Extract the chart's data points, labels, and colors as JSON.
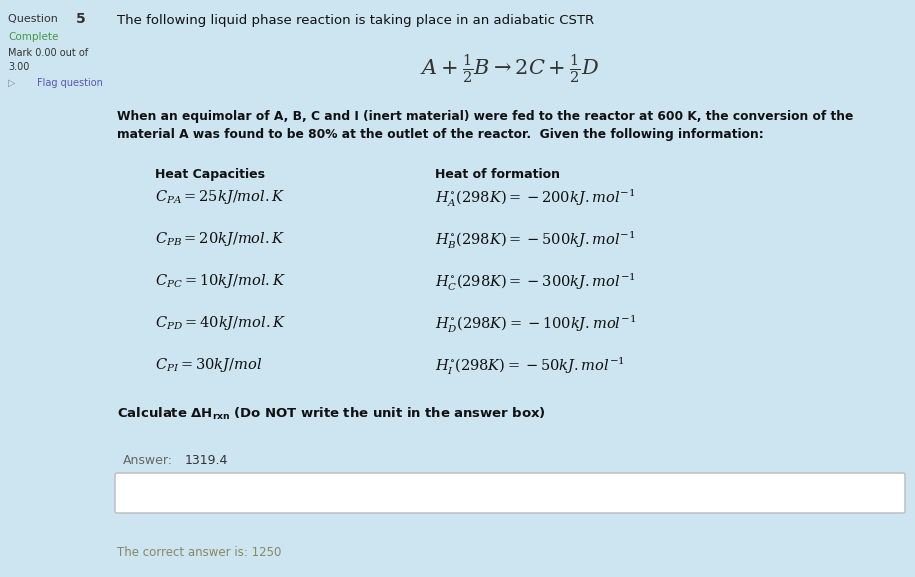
{
  "bg_main": "#cce5f0",
  "bg_sidebar": "#d4d4d4",
  "bg_answer_box": "#ffffff",
  "bg_correct_answer": "#fdf5dc",
  "title_text": "The following liquid phase reaction is taking place in an adiabatic CSTR",
  "intro_line1": "When an equimolar of A, B, C and I (inert material) were fed to the reactor at 600 K, the conversion of the",
  "intro_line2": "material A was found to be 80% at the outlet of the reactor.  Given the following information:",
  "heat_cap_header": "Heat Capacities",
  "heat_form_header": "Heat of formation",
  "answer_label": "Answer:",
  "answer_value": "1319.4",
  "correct_answer_text": "The correct answer is: 1250",
  "sidebar_q": "Question ",
  "sidebar_qnum": "5",
  "sidebar_complete": "Complete",
  "sidebar_mark1": "Mark 0.00 out of",
  "sidebar_mark2": "3.00",
  "sidebar_flag": "Flag question",
  "fig_width": 9.15,
  "fig_height": 5.77,
  "dpi": 100
}
